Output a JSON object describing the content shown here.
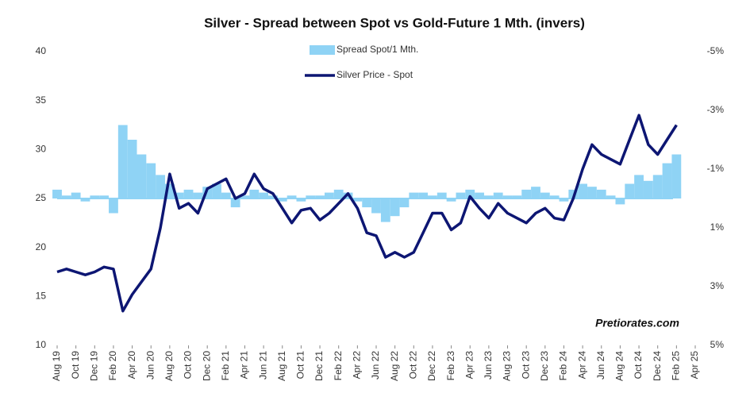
{
  "chart_data": {
    "type": "combo",
    "title": "Silver - Spread between Spot vs Gold-Future 1 Mth. (invers)",
    "annotation": "Pretiorates.com",
    "x": [
      "2019-08",
      "2019-09",
      "2019-10",
      "2019-11",
      "2019-12",
      "2020-01",
      "2020-02",
      "2020-03",
      "2020-04",
      "2020-05",
      "2020-06",
      "2020-07",
      "2020-08",
      "2020-09",
      "2020-10",
      "2020-11",
      "2020-12",
      "2021-01",
      "2021-02",
      "2021-03",
      "2021-04",
      "2021-05",
      "2021-06",
      "2021-07",
      "2021-08",
      "2021-09",
      "2021-10",
      "2021-11",
      "2021-12",
      "2022-01",
      "2022-02",
      "2022-03",
      "2022-04",
      "2022-05",
      "2022-06",
      "2022-07",
      "2022-08",
      "2022-09",
      "2022-10",
      "2022-11",
      "2022-12",
      "2023-01",
      "2023-02",
      "2023-03",
      "2023-04",
      "2023-05",
      "2023-06",
      "2023-07",
      "2023-08",
      "2023-09",
      "2023-10",
      "2023-11",
      "2023-12",
      "2024-01",
      "2024-02",
      "2024-03",
      "2024-04",
      "2024-05",
      "2024-06",
      "2024-07",
      "2024-08",
      "2024-09",
      "2024-10",
      "2024-11",
      "2024-12",
      "2025-01",
      "2025-02"
    ],
    "series": [
      {
        "name": "Spread Spot/1 Mth.",
        "type": "bar",
        "axis": "y2",
        "color": "#8fd3f5",
        "values": [
          -0.3,
          -0.1,
          -0.2,
          0.1,
          -0.1,
          -0.1,
          0.5,
          -2.5,
          -2.0,
          -1.5,
          -1.2,
          -0.8,
          -0.5,
          -0.2,
          -0.3,
          -0.2,
          -0.4,
          -0.5,
          -0.2,
          0.3,
          -0.1,
          -0.3,
          -0.2,
          -0.1,
          0.1,
          -0.1,
          0.1,
          -0.1,
          -0.1,
          -0.2,
          -0.3,
          -0.2,
          0.1,
          0.3,
          0.5,
          0.8,
          0.6,
          0.3,
          -0.2,
          -0.2,
          -0.1,
          -0.2,
          0.1,
          -0.2,
          -0.3,
          -0.2,
          -0.1,
          -0.2,
          -0.1,
          -0.1,
          -0.3,
          -0.4,
          -0.2,
          -0.1,
          0.1,
          -0.3,
          -0.5,
          -0.4,
          -0.3,
          -0.1,
          0.2,
          -0.5,
          -0.8,
          -0.6,
          -0.8,
          -1.2,
          -1.5
        ]
      },
      {
        "name": "Silver Price - Spot",
        "type": "line",
        "axis": "y",
        "color": "#0d1673",
        "values": [
          17.5,
          17.8,
          17.5,
          17.2,
          17.5,
          18.0,
          17.8,
          13.5,
          15.2,
          16.5,
          17.8,
          22,
          27.5,
          24,
          24.5,
          23.5,
          26,
          26.5,
          27,
          25,
          25.5,
          27.5,
          26,
          25.5,
          24,
          22.5,
          23.8,
          24,
          22.8,
          23.5,
          24.5,
          25.5,
          24,
          21.5,
          21.2,
          19.0,
          19.5,
          19.0,
          19.5,
          21.5,
          23.5,
          23.5,
          21.8,
          22.5,
          25.2,
          24,
          23,
          24.5,
          23.5,
          23,
          22.5,
          23.5,
          24,
          23,
          22.8,
          25,
          28,
          30.5,
          29.5,
          29,
          28.5,
          31,
          33.5,
          30.5,
          29.5,
          31,
          32.5
        ]
      }
    ],
    "xlim": [
      "2019-08",
      "2025-04"
    ],
    "xticks": [
      {
        "value": "2019-08",
        "label": "Aug 19"
      },
      {
        "value": "2019-10",
        "label": "Oct 19"
      },
      {
        "value": "2019-12",
        "label": "Dec 19"
      },
      {
        "value": "2020-02",
        "label": "Feb 20"
      },
      {
        "value": "2020-04",
        "label": "Apr 20"
      },
      {
        "value": "2020-06",
        "label": "Jun 20"
      },
      {
        "value": "2020-08",
        "label": "Aug 20"
      },
      {
        "value": "2020-10",
        "label": "Oct 20"
      },
      {
        "value": "2020-12",
        "label": "Dec 20"
      },
      {
        "value": "2021-02",
        "label": "Feb 21"
      },
      {
        "value": "2021-04",
        "label": "Apr 21"
      },
      {
        "value": "2021-06",
        "label": "Jun 21"
      },
      {
        "value": "2021-08",
        "label": "Aug 21"
      },
      {
        "value": "2021-10",
        "label": "Oct 21"
      },
      {
        "value": "2021-12",
        "label": "Dec 21"
      },
      {
        "value": "2022-02",
        "label": "Feb 22"
      },
      {
        "value": "2022-04",
        "label": "Apr 22"
      },
      {
        "value": "2022-06",
        "label": "Jun 22"
      },
      {
        "value": "2022-08",
        "label": "Aug 22"
      },
      {
        "value": "2022-10",
        "label": "Oct 22"
      },
      {
        "value": "2022-12",
        "label": "Dec 22"
      },
      {
        "value": "2023-02",
        "label": "Feb 23"
      },
      {
        "value": "2023-04",
        "label": "Apr 23"
      },
      {
        "value": "2023-06",
        "label": "Jun 23"
      },
      {
        "value": "2023-08",
        "label": "Aug 23"
      },
      {
        "value": "2023-10",
        "label": "Oct 23"
      },
      {
        "value": "2023-12",
        "label": "Dec 23"
      },
      {
        "value": "2024-02",
        "label": "Feb 24"
      },
      {
        "value": "2024-04",
        "label": "Apr 24"
      },
      {
        "value": "2024-06",
        "label": "Jun 24"
      },
      {
        "value": "2024-08",
        "label": "Aug 24"
      },
      {
        "value": "2024-10",
        "label": "Oct 24"
      },
      {
        "value": "2024-12",
        "label": "Dec 24"
      },
      {
        "value": "2025-02",
        "label": "Feb 25"
      },
      {
        "value": "2025-04",
        "label": "Apr 25"
      }
    ],
    "ylim": [
      10,
      40
    ],
    "yticks": [
      10,
      15,
      20,
      25,
      30,
      35,
      40
    ],
    "y2lim": [
      5,
      -5
    ],
    "y2ticks": [
      {
        "value": 5,
        "label": "5%"
      },
      {
        "value": 3,
        "label": "3%"
      },
      {
        "value": 1,
        "label": "1%"
      },
      {
        "value": -1,
        "label": "-1%"
      },
      {
        "value": -3,
        "label": "-3%"
      },
      {
        "value": -5,
        "label": "-5%"
      }
    ],
    "grid": false,
    "legend": "top"
  }
}
